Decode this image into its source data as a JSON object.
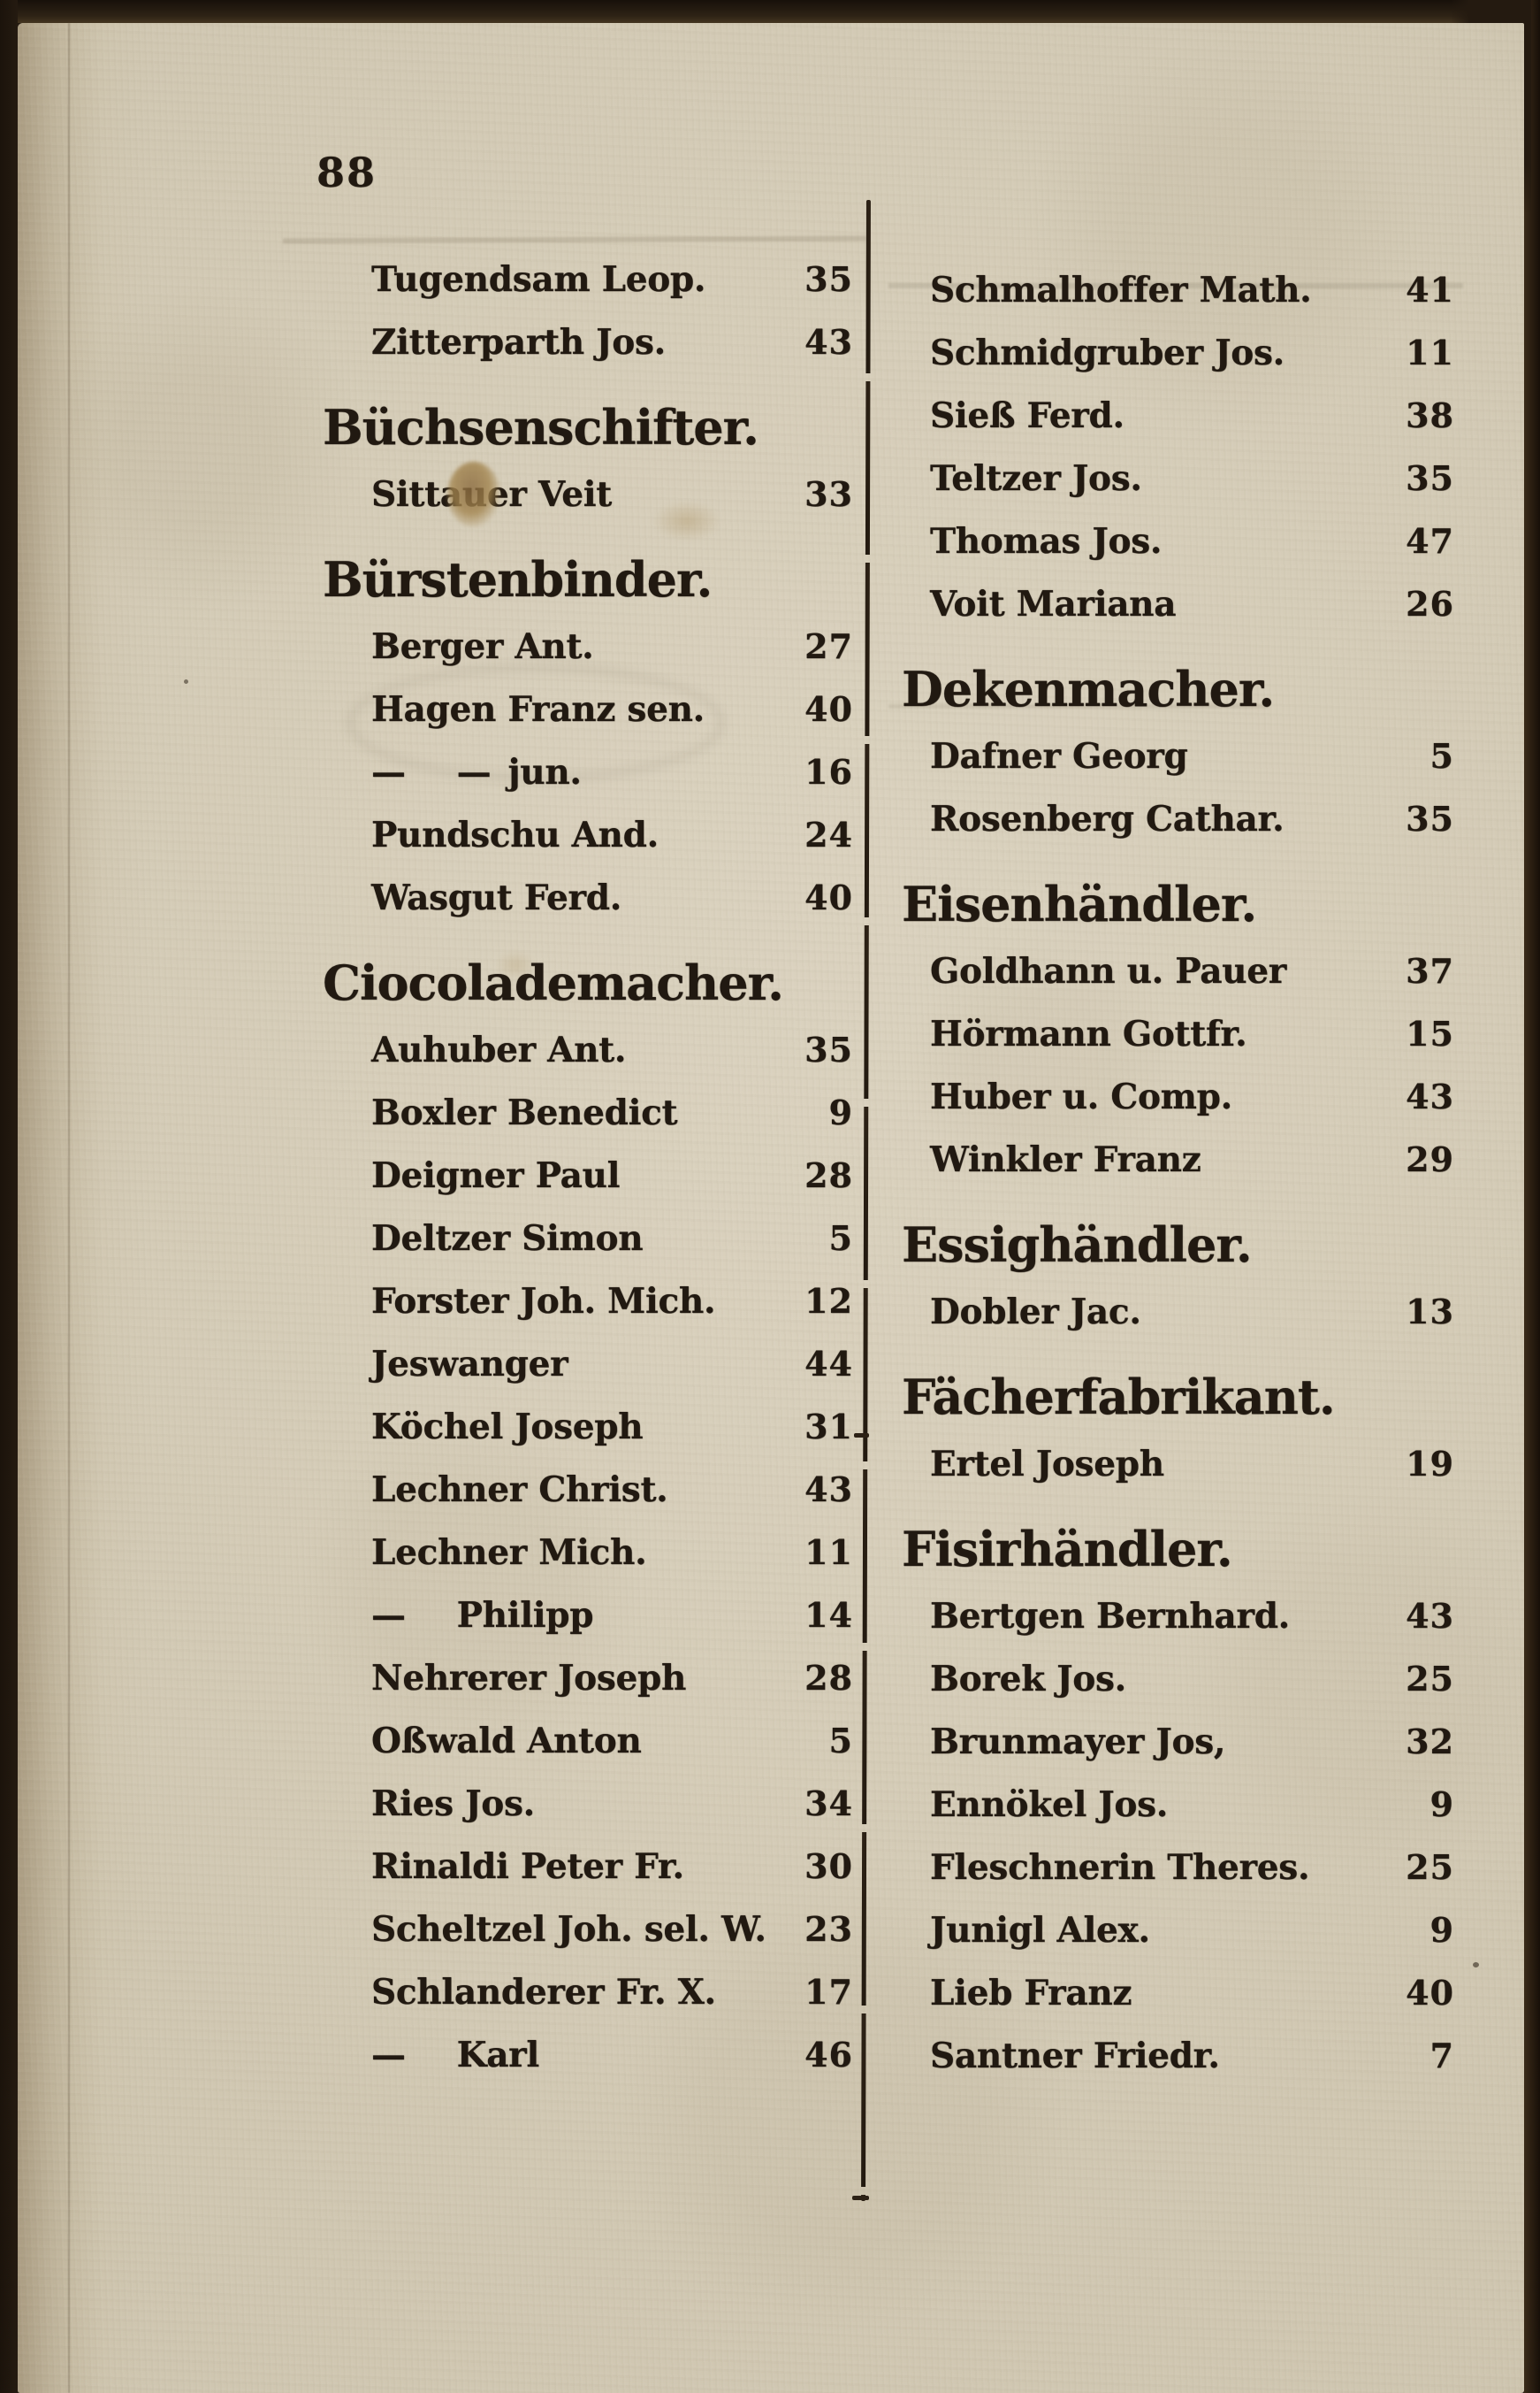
{
  "page": {
    "number": "88",
    "description": "Scanned page of an 18th-century German trade directory set in blackletter, two columns of surnames with house numbers, separated by a hand-ruled vertical line."
  },
  "columns": {
    "left": {
      "rows": [
        {
          "type": "entry",
          "name": "Tugendsam Leop.",
          "value": "35"
        },
        {
          "type": "entry",
          "name": "Zitterparth Jos.",
          "value": "43"
        },
        {
          "type": "heading",
          "text": "Büchsenschifter."
        },
        {
          "type": "entry",
          "name": "Sittauer Veit",
          "value": "33"
        },
        {
          "type": "heading",
          "text": "Bürstenbinder."
        },
        {
          "type": "entry",
          "name": "Berger Ant.",
          "value": "27"
        },
        {
          "type": "entry",
          "name": "Hagen Franz sen.",
          "value": "40"
        },
        {
          "type": "entry",
          "name": "—  — jun.",
          "value": "16"
        },
        {
          "type": "entry",
          "name": "Pundschu And.",
          "value": "24"
        },
        {
          "type": "entry",
          "name": "Wasgut Ferd.",
          "value": "40"
        },
        {
          "type": "heading",
          "text": "Ciocolademacher."
        },
        {
          "type": "entry",
          "name": "Auhuber Ant.",
          "value": "35"
        },
        {
          "type": "entry",
          "name": "Boxler Benedict",
          "value": "9"
        },
        {
          "type": "entry",
          "name": "Deigner Paul",
          "value": "28"
        },
        {
          "type": "entry",
          "name": "Deltzer Simon",
          "value": "5"
        },
        {
          "type": "entry",
          "name": "Forster Joh. Mich.",
          "value": "12"
        },
        {
          "type": "entry",
          "name": "Jeswanger",
          "value": "44"
        },
        {
          "type": "entry",
          "name": "Köchel Joseph",
          "value": "31"
        },
        {
          "type": "entry",
          "name": "Lechner Christ.",
          "value": "43"
        },
        {
          "type": "entry",
          "name": "Lechner Mich.",
          "value": "11"
        },
        {
          "type": "entry",
          "name": "—  Philipp",
          "value": "14"
        },
        {
          "type": "entry",
          "name": "Nehrerer Joseph",
          "value": "28"
        },
        {
          "type": "entry",
          "name": "Oßwald Anton",
          "value": "5"
        },
        {
          "type": "entry",
          "name": "Ries Jos.",
          "value": "34"
        },
        {
          "type": "entry",
          "name": "Rinaldi Peter Fr.",
          "value": "30"
        },
        {
          "type": "entry",
          "name": "Scheltzel Joh. sel. W.",
          "value": "23"
        },
        {
          "type": "entry",
          "name": "Schlanderer Fr. X.",
          "value": "17"
        },
        {
          "type": "entry",
          "name": "—  Karl",
          "value": "46"
        }
      ]
    },
    "right": {
      "rows": [
        {
          "type": "entry",
          "name": "Schmalhoffer Math.",
          "value": "41"
        },
        {
          "type": "entry",
          "name": "Schmidgruber Jos.",
          "value": "11"
        },
        {
          "type": "entry",
          "name": "Sieß Ferd.",
          "value": "38"
        },
        {
          "type": "entry",
          "name": "Teltzer Jos.",
          "value": "35"
        },
        {
          "type": "entry",
          "name": "Thomas Jos.",
          "value": "47"
        },
        {
          "type": "entry",
          "name": "Voit Mariana",
          "value": "26"
        },
        {
          "type": "heading",
          "text": "Dekenmacher."
        },
        {
          "type": "entry",
          "name": "Dafner Georg",
          "value": "5"
        },
        {
          "type": "entry",
          "name": "Rosenberg Cathar.",
          "value": "35"
        },
        {
          "type": "heading",
          "text": "Eisenhändler."
        },
        {
          "type": "entry",
          "name": "Goldhann u. Pauer",
          "value": "37"
        },
        {
          "type": "entry",
          "name": "Hörmann Gottfr.",
          "value": "15"
        },
        {
          "type": "entry",
          "name": "Huber u. Comp.",
          "value": "43"
        },
        {
          "type": "entry",
          "name": "Winkler Franz",
          "value": "29"
        },
        {
          "type": "heading",
          "text": "Essighändler."
        },
        {
          "type": "entry",
          "name": "Dobler Jac.",
          "value": "13"
        },
        {
          "type": "heading",
          "text": "Fächerfabrikant."
        },
        {
          "type": "entry",
          "name": "Ertel Joseph",
          "value": "19"
        },
        {
          "type": "heading",
          "text": "Fisirhändler."
        },
        {
          "type": "entry",
          "name": "Bertgen Bernhard.",
          "value": "43"
        },
        {
          "type": "entry",
          "name": "Borek Jos.",
          "value": "25"
        },
        {
          "type": "entry",
          "name": "Brunmayer Jos,",
          "value": "32"
        },
        {
          "type": "entry",
          "name": "Ennökel Jos.",
          "value": "9"
        },
        {
          "type": "entry",
          "name": "Fleschnerin Theres.",
          "value": "25"
        },
        {
          "type": "entry",
          "name": "Junigl Alex.",
          "value": "9"
        },
        {
          "type": "entry",
          "name": "Lieb Franz",
          "value": "40"
        },
        {
          "type": "entry",
          "name": "Santner Friedr.",
          "value": "7"
        }
      ]
    }
  }
}
